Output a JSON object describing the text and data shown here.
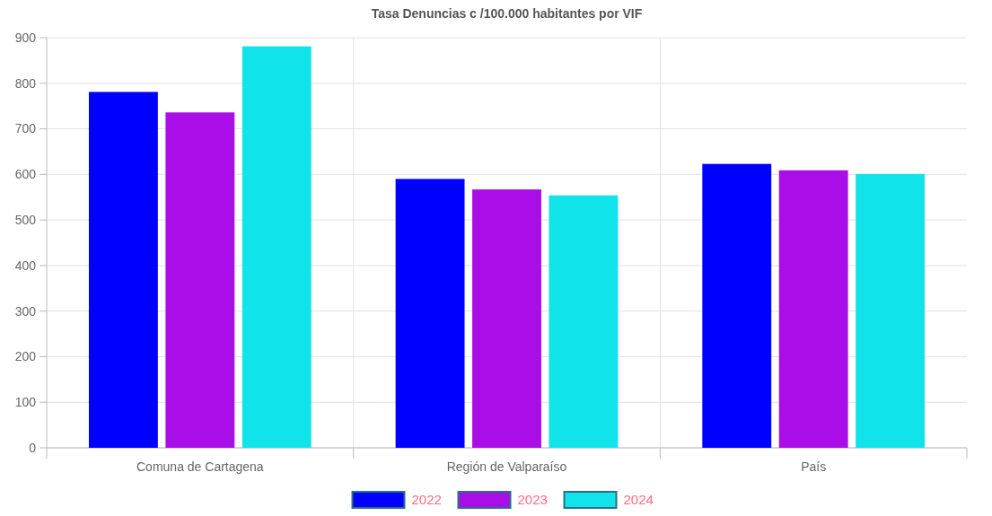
{
  "chart_data": {
    "type": "bar",
    "title": "Tasa Denuncias c /100.000 habitantes por VIF",
    "categories": [
      "Comuna de Cartagena",
      "Región de Valparaíso",
      "País"
    ],
    "series": [
      {
        "name": "2022",
        "color": "#0000ff",
        "values": [
          781,
          590,
          623
        ]
      },
      {
        "name": "2023",
        "color": "#aa0ee8",
        "values": [
          736,
          567,
          609
        ]
      },
      {
        "name": "2024",
        "color": "#10e4ea",
        "values": [
          881,
          554,
          601
        ]
      }
    ],
    "ylim": [
      0,
      900
    ],
    "yticks": [
      0,
      100,
      200,
      300,
      400,
      500,
      600,
      700,
      800,
      900
    ],
    "grid": true,
    "legend": "bottom"
  }
}
